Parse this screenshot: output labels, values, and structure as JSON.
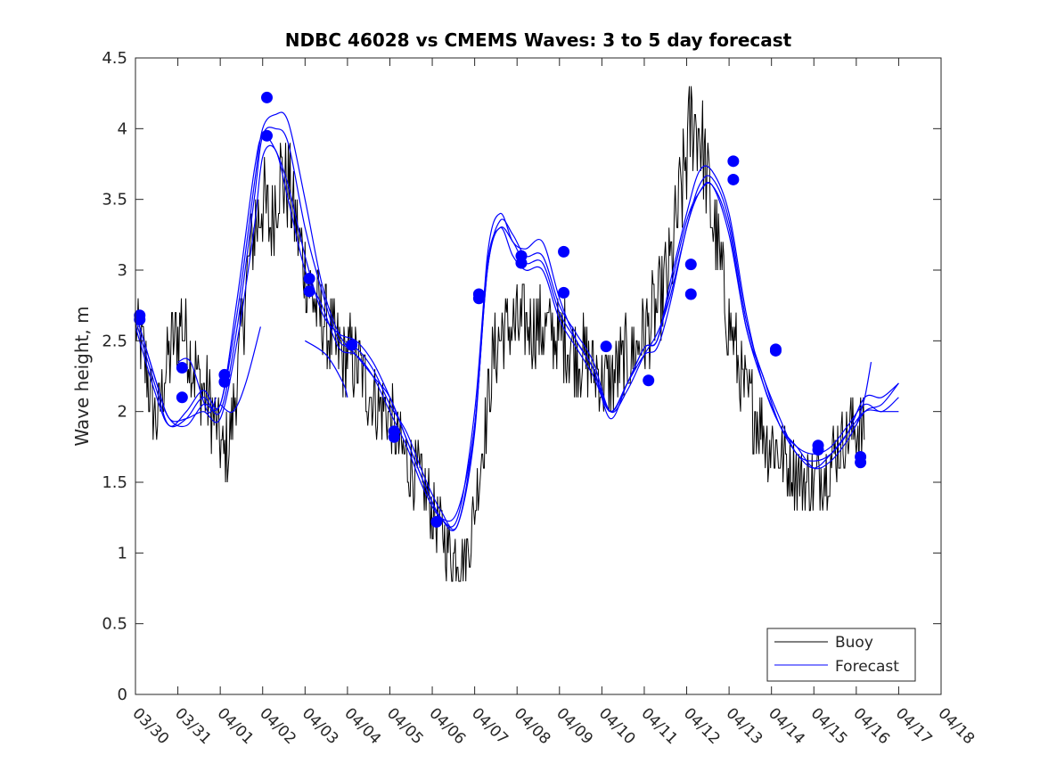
{
  "chart_data": {
    "type": "line",
    "title": "NDBC 46028 vs CMEMS Waves: 3 to 5 day forecast",
    "xlabel": "",
    "ylabel": "Wave height, m",
    "xlim": [
      0,
      19
    ],
    "ylim": [
      0,
      4.5
    ],
    "x_tick_labels": [
      "03/30",
      "03/31",
      "04/01",
      "04/02",
      "04/03",
      "04/04",
      "04/05",
      "04/06",
      "04/07",
      "04/08",
      "04/09",
      "04/10",
      "04/11",
      "04/12",
      "04/13",
      "04/14",
      "04/15",
      "04/16",
      "04/17",
      "04/18"
    ],
    "y_ticks": [
      0,
      0.5,
      1,
      1.5,
      2,
      2.5,
      3,
      3.5,
      4,
      4.5
    ],
    "y_tick_labels": [
      "0",
      "0.5",
      "1",
      "1.5",
      "2",
      "2.5",
      "3",
      "3.5",
      "4",
      "4.5"
    ],
    "legend": {
      "position": "bottom-right",
      "entries": [
        "Buoy",
        "Forecast"
      ]
    },
    "colors": {
      "buoy": "#000000",
      "forecast": "#0000ff",
      "marker": "#0000ff",
      "axis": "#262626"
    },
    "buoy_anchors": [
      [
        0.0,
        2.6
      ],
      [
        0.2,
        2.4
      ],
      [
        0.35,
        2.1
      ],
      [
        0.5,
        1.9
      ],
      [
        0.7,
        2.3
      ],
      [
        0.9,
        2.5
      ],
      [
        1.1,
        2.65
      ],
      [
        1.3,
        2.4
      ],
      [
        1.5,
        2.2
      ],
      [
        1.7,
        2.1
      ],
      [
        1.9,
        1.9
      ],
      [
        2.05,
        1.7
      ],
      [
        2.2,
        1.75
      ],
      [
        2.4,
        2.2
      ],
      [
        2.6,
        2.9
      ],
      [
        2.8,
        3.3
      ],
      [
        3.0,
        3.5
      ],
      [
        3.2,
        3.3
      ],
      [
        3.4,
        3.7
      ],
      [
        3.6,
        3.6
      ],
      [
        3.8,
        3.3
      ],
      [
        4.0,
        3.0
      ],
      [
        4.2,
        2.8
      ],
      [
        4.5,
        2.6
      ],
      [
        4.8,
        2.4
      ],
      [
        5.0,
        2.4
      ],
      [
        5.3,
        2.3
      ],
      [
        5.6,
        2.1
      ],
      [
        5.9,
        2.0
      ],
      [
        6.2,
        1.8
      ],
      [
        6.5,
        1.6
      ],
      [
        6.8,
        1.45
      ],
      [
        7.0,
        1.3
      ],
      [
        7.2,
        1.15
      ],
      [
        7.4,
        1.0
      ],
      [
        7.6,
        1.0
      ],
      [
        7.8,
        0.95
      ],
      [
        8.0,
        1.3
      ],
      [
        8.2,
        1.8
      ],
      [
        8.4,
        2.3
      ],
      [
        8.6,
        2.55
      ],
      [
        8.8,
        2.6
      ],
      [
        9.0,
        2.6
      ],
      [
        9.3,
        2.6
      ],
      [
        9.6,
        2.6
      ],
      [
        9.9,
        2.55
      ],
      [
        10.2,
        2.5
      ],
      [
        10.5,
        2.4
      ],
      [
        10.8,
        2.3
      ],
      [
        11.1,
        2.2
      ],
      [
        11.4,
        2.3
      ],
      [
        11.7,
        2.4
      ],
      [
        12.0,
        2.55
      ],
      [
        12.3,
        2.7
      ],
      [
        12.6,
        3.0
      ],
      [
        12.9,
        3.6
      ],
      [
        13.1,
        4.05
      ],
      [
        13.3,
        4.0
      ],
      [
        13.5,
        3.6
      ],
      [
        13.7,
        3.2
      ],
      [
        13.9,
        2.8
      ],
      [
        14.1,
        2.5
      ],
      [
        14.3,
        2.2
      ],
      [
        14.6,
        2.0
      ],
      [
        14.9,
        1.8
      ],
      [
        15.2,
        1.7
      ],
      [
        15.5,
        1.6
      ],
      [
        15.8,
        1.5
      ],
      [
        16.0,
        1.5
      ],
      [
        16.3,
        1.6
      ],
      [
        16.6,
        1.75
      ],
      [
        16.9,
        1.9
      ],
      [
        17.2,
        1.85
      ]
    ],
    "forecast_runs": [
      {
        "x": [
          0.0,
          0.5,
          0.8,
          1.2,
          1.6,
          2.0,
          2.4,
          2.8,
          3.0,
          3.3,
          3.6,
          4.0,
          4.4,
          4.8,
          5.2,
          5.6,
          6.0,
          6.4,
          6.8,
          7.2,
          7.6,
          8.0,
          8.3,
          8.6,
          8.9,
          9.2,
          9.6,
          10.0,
          10.4,
          10.8,
          11.2,
          11.6,
          12.0,
          12.3,
          12.6,
          13.0,
          13.3,
          13.6,
          14.0,
          14.4,
          14.8,
          15.2,
          15.6,
          16.0,
          16.4,
          16.8,
          17.2,
          17.6,
          18.0
        ],
        "y": [
          2.7,
          2.2,
          1.95,
          1.9,
          2.05,
          2.05,
          2.7,
          3.6,
          4.0,
          4.1,
          4.05,
          3.5,
          2.9,
          2.55,
          2.4,
          2.25,
          2.1,
          1.8,
          1.5,
          1.25,
          1.2,
          1.85,
          3.1,
          3.4,
          3.2,
          3.15,
          3.2,
          2.8,
          2.5,
          2.3,
          1.95,
          2.2,
          2.45,
          2.5,
          2.9,
          3.4,
          3.7,
          3.7,
          3.4,
          2.7,
          2.2,
          1.9,
          1.75,
          1.6,
          1.65,
          1.8,
          2.0,
          2.05,
          2.2
        ]
      },
      {
        "x": [
          0.0,
          0.5,
          0.8,
          1.2,
          1.6,
          2.0,
          2.4,
          2.8,
          3.0,
          3.3,
          3.6,
          4.0,
          4.4,
          4.8,
          5.2,
          5.6,
          6.0,
          6.4,
          6.8,
          7.2,
          7.6,
          8.0,
          8.3,
          8.6,
          8.9,
          9.2,
          9.6,
          10.0,
          10.4,
          10.8,
          11.2,
          11.6,
          12.0,
          12.3,
          12.6,
          13.0,
          13.3,
          13.6,
          14.0,
          14.4,
          14.8,
          15.2,
          15.6,
          16.0,
          16.4,
          16.8,
          17.2,
          17.6,
          18.0
        ],
        "y": [
          2.6,
          2.1,
          1.9,
          1.95,
          2.1,
          2.0,
          2.6,
          3.5,
          3.95,
          4.0,
          3.9,
          3.3,
          2.85,
          2.5,
          2.45,
          2.3,
          2.05,
          1.85,
          1.55,
          1.3,
          1.2,
          1.9,
          3.0,
          3.35,
          3.25,
          3.1,
          3.1,
          2.75,
          2.55,
          2.35,
          2.0,
          2.15,
          2.4,
          2.55,
          2.8,
          3.3,
          3.6,
          3.65,
          3.35,
          2.65,
          2.25,
          1.95,
          1.7,
          1.65,
          1.7,
          1.85,
          2.1,
          2.1,
          2.2
        ]
      },
      {
        "x": [
          0.0,
          0.5,
          0.8,
          1.2,
          1.6,
          2.0,
          2.4,
          2.8,
          3.0,
          3.3,
          3.6,
          4.0,
          4.4,
          4.8,
          5.2,
          5.6,
          6.0,
          6.4,
          6.8,
          7.2,
          7.6,
          8.0,
          8.3,
          8.6,
          8.9,
          9.2,
          9.6,
          10.0,
          10.4,
          10.8,
          11.2,
          11.6,
          12.0,
          12.3,
          12.6,
          13.0,
          13.3,
          13.6,
          14.0,
          14.4,
          14.8,
          15.2,
          15.6,
          16.0,
          16.4,
          16.8,
          17.2,
          17.6,
          18.0
        ],
        "y": [
          2.65,
          2.15,
          1.9,
          2.0,
          2.15,
          2.05,
          2.8,
          3.7,
          3.95,
          3.85,
          3.6,
          3.1,
          2.7,
          2.55,
          2.5,
          2.35,
          2.1,
          1.8,
          1.5,
          1.25,
          1.25,
          2.0,
          3.05,
          3.3,
          3.2,
          3.05,
          3.05,
          2.7,
          2.5,
          2.3,
          2.0,
          2.2,
          2.45,
          2.5,
          2.85,
          3.35,
          3.55,
          3.6,
          3.3,
          2.6,
          2.25,
          1.9,
          1.75,
          1.7,
          1.75,
          1.9,
          2.05,
          2.0,
          2.1
        ]
      },
      {
        "x": [
          0.0,
          0.5,
          0.8,
          1.2,
          1.6,
          2.0,
          2.4,
          2.8,
          3.0,
          3.3,
          3.6,
          4.0,
          4.4,
          4.8,
          5.2,
          5.6,
          6.0,
          6.4,
          6.8,
          7.2,
          7.6,
          8.0,
          8.3,
          8.6,
          8.9,
          9.2,
          9.6,
          10.0,
          10.4,
          10.8,
          11.2,
          11.6,
          12.0,
          12.3,
          12.6,
          13.0,
          13.3,
          13.6,
          14.0,
          14.4,
          14.8,
          15.2,
          15.6,
          16.0,
          16.4,
          16.8,
          17.2,
          17.6,
          18.0
        ],
        "y": [
          2.7,
          2.2,
          1.95,
          1.95,
          2.0,
          1.95,
          2.5,
          3.3,
          3.8,
          3.85,
          3.5,
          3.0,
          2.75,
          2.45,
          2.4,
          2.25,
          2.0,
          1.75,
          1.45,
          1.25,
          1.3,
          1.9,
          3.0,
          3.3,
          3.1,
          3.0,
          3.0,
          2.65,
          2.45,
          2.25,
          2.0,
          2.2,
          2.4,
          2.45,
          2.75,
          3.3,
          3.55,
          3.6,
          3.25,
          2.6,
          2.2,
          1.9,
          1.7,
          1.6,
          1.7,
          1.85,
          2.0,
          2.0,
          2.0
        ]
      },
      {
        "x": [
          1.0,
          1.3,
          1.7,
          1.9
        ],
        "y": [
          2.35,
          2.35,
          2.0,
          2.1
        ]
      },
      {
        "x": [
          2.0,
          2.3,
          2.6,
          2.95
        ],
        "y": [
          2.05,
          2.0,
          2.2,
          2.6
        ]
      },
      {
        "x": [
          4.0,
          4.5,
          4.9,
          5.0
        ],
        "y": [
          2.5,
          2.4,
          2.2,
          2.1
        ]
      },
      {
        "x": [
          17.0,
          17.2,
          17.35
        ],
        "y": [
          1.9,
          2.1,
          2.35
        ]
      }
    ],
    "forecast_markers": {
      "x": [
        0.1,
        0.1,
        1.1,
        1.1,
        2.1,
        2.1,
        3.1,
        3.1,
        4.1,
        4.1,
        5.1,
        6.1,
        6.1,
        7.1,
        8.1,
        8.1,
        9.1,
        9.1,
        10.1,
        10.1,
        11.1,
        12.1,
        13.1,
        13.1,
        14.1,
        14.1,
        15.1,
        15.1,
        16.1,
        16.1,
        17.1,
        17.1
      ],
      "y": [
        2.65,
        2.68,
        2.31,
        2.1,
        2.26,
        2.21,
        4.22,
        3.95,
        2.94,
        2.85,
        2.47,
        1.86,
        1.82,
        1.22,
        2.83,
        2.8,
        3.1,
        3.05,
        3.13,
        2.84,
        2.46,
        2.22,
        3.04,
        2.83,
        3.77,
        3.64,
        2.44,
        2.43,
        1.76,
        1.73,
        1.68,
        1.64
      ]
    }
  }
}
